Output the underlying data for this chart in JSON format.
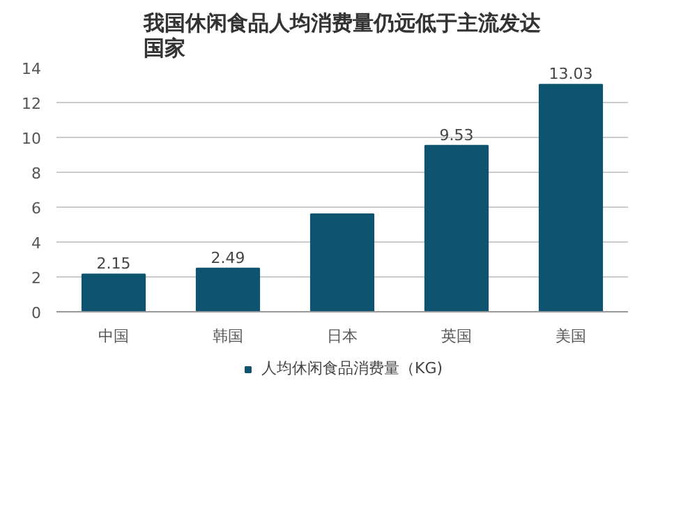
{
  "chart_data": {
    "type": "bar",
    "title": "我国休闲食品人均消费量仍远低于主流发达国家",
    "categories": [
      "中国",
      "韩国",
      "日本",
      "英国",
      "美国"
    ],
    "series": [
      {
        "name": "人均休闲食品消费量（KG)",
        "color": "#0e5470",
        "values": [
          2.15,
          2.49,
          5.6,
          9.53,
          13.03
        ],
        "value_labels": [
          "2.15",
          "2.49",
          null,
          "9.53",
          "13.03"
        ]
      }
    ],
    "ylim": [
      0,
      14
    ],
    "yticks": [
      0,
      2,
      4,
      6,
      8,
      10,
      12,
      14
    ],
    "grid": "y",
    "legend": "bottom"
  }
}
